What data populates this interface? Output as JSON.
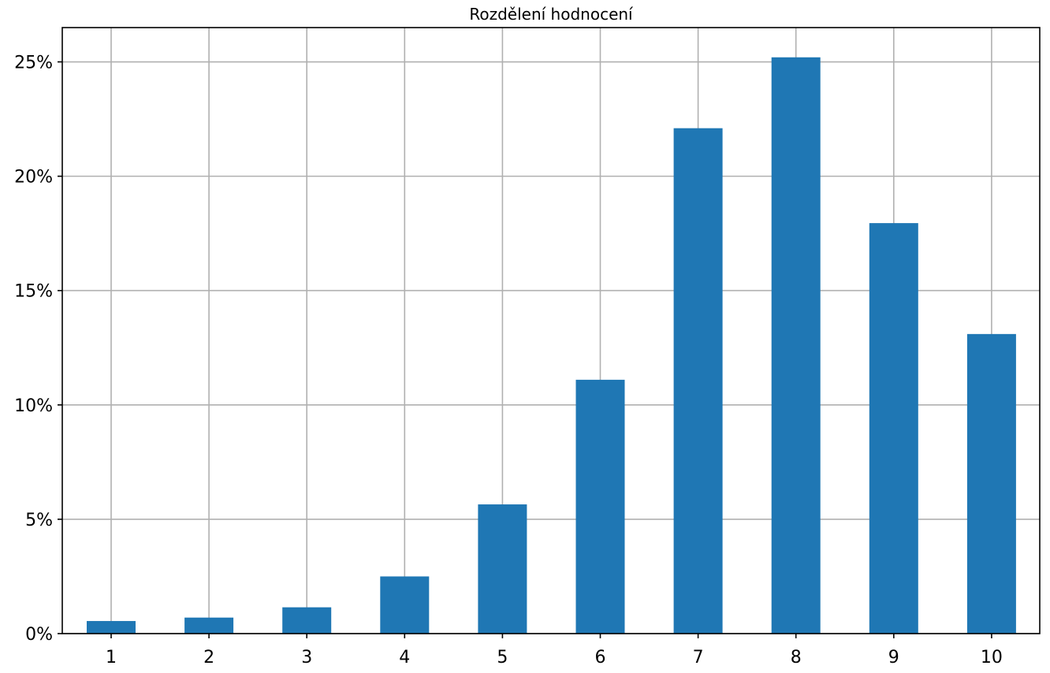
{
  "chart_data": {
    "type": "bar",
    "title": "Rozdělení hodnocení",
    "xlabel": "",
    "ylabel": "",
    "categories": [
      "1",
      "2",
      "3",
      "4",
      "5",
      "6",
      "7",
      "8",
      "9",
      "10"
    ],
    "values": [
      0.55,
      0.7,
      1.15,
      2.5,
      5.65,
      11.1,
      22.1,
      25.2,
      17.95,
      13.1
    ],
    "y_unit": "%",
    "ylim": [
      0,
      26.5
    ],
    "yticks": [
      0,
      5,
      10,
      15,
      20,
      25
    ],
    "ytick_labels": [
      "0%",
      "5%",
      "10%",
      "15%",
      "20%",
      "25%"
    ],
    "grid": true,
    "bar_color": "#1f77b4"
  }
}
